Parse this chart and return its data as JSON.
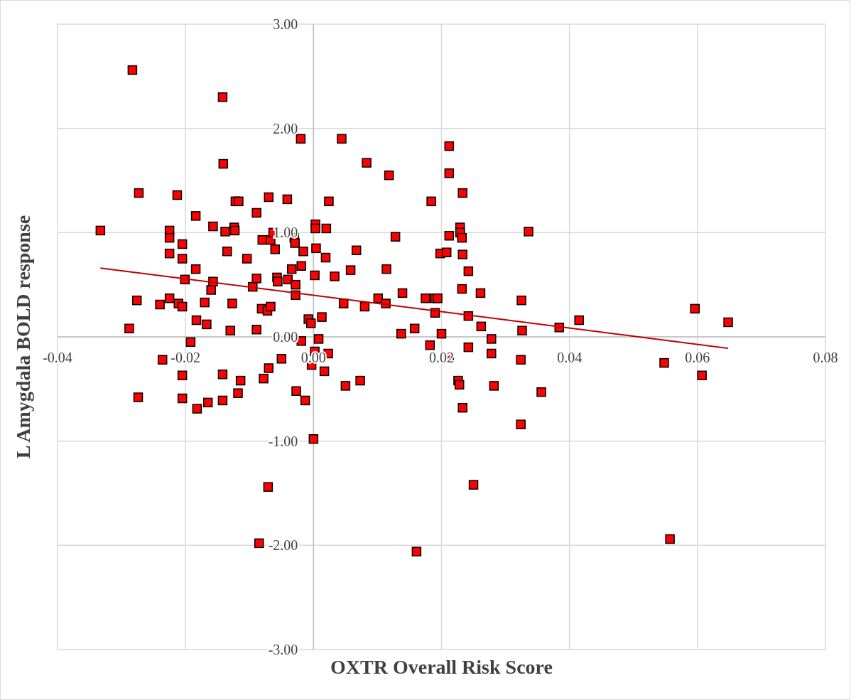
{
  "chart_data": {
    "type": "scatter",
    "xlabel": "OXTR Overall Risk Score",
    "ylabel": "L Amygdala BOLD response",
    "xlim": [
      -0.04,
      0.08
    ],
    "ylim": [
      -3,
      3
    ],
    "xticks": [
      {
        "value": -0.04,
        "label": "-0.04"
      },
      {
        "value": -0.02,
        "label": "-0.02"
      },
      {
        "value": 0,
        "label": "0.00"
      },
      {
        "value": 0.02,
        "label": "0.02"
      },
      {
        "value": 0.04,
        "label": "0.04"
      },
      {
        "value": 0.06,
        "label": "0.06"
      },
      {
        "value": 0.08,
        "label": "0.08"
      }
    ],
    "yticks": [
      {
        "value": -3,
        "label": "-3.00"
      },
      {
        "value": -2,
        "label": "-2.00"
      },
      {
        "value": -1,
        "label": "-1.00"
      },
      {
        "value": 0,
        "label": "0.00"
      },
      {
        "value": 1,
        "label": "1.00"
      },
      {
        "value": 2,
        "label": "2.00"
      },
      {
        "value": 3,
        "label": "3.00"
      }
    ],
    "grid": true,
    "series": [
      {
        "marker": "square",
        "color": "#ff0000",
        "x": [
          -0.0333,
          -0.0283,
          -0.0273,
          -0.0288,
          -0.0276,
          -0.0274,
          -0.024,
          -0.0236,
          -0.0225,
          -0.0225,
          -0.0225,
          -0.0225,
          -0.0213,
          -0.0211,
          -0.0205,
          -0.0205,
          -0.0205,
          -0.0205,
          -0.0205,
          -0.0201,
          -0.0192,
          -0.0184,
          -0.0184,
          -0.0183,
          -0.0182,
          -0.017,
          -0.0167,
          -0.0165,
          -0.016,
          -0.0157,
          -0.0157,
          -0.0142,
          -0.0141,
          -0.0142,
          -0.0142,
          -0.0138,
          -0.0135,
          -0.013,
          -0.0127,
          -0.0124,
          -0.0123,
          -0.0122,
          -0.0117,
          -0.0118,
          -0.0114,
          -0.0104,
          -0.0095,
          -0.0089,
          -0.0089,
          -0.0089,
          -0.0085,
          -0.0081,
          -0.008,
          -0.0078,
          -0.0072,
          -0.0071,
          -0.007,
          -0.007,
          -0.0067,
          -0.0067,
          -0.0063,
          -0.006,
          -0.0057,
          -0.0056,
          -0.005,
          -0.0041,
          -0.004,
          -0.0034,
          -0.003,
          -0.0029,
          -0.0028,
          -0.0028,
          -0.0027,
          -0.002,
          -0.0019,
          -0.0019,
          -0.0016,
          -0.0013,
          -0.0008,
          -0.0004,
          -0.0003,
          0,
          0.0002,
          0.0003,
          0.0003,
          0.0002,
          0.0004,
          0.0008,
          0.0013,
          0.0017,
          0.0019,
          0.002,
          0.0023,
          0.0024,
          0.0033,
          0.0044,
          0.0047,
          0.005,
          0.0058,
          0.0067,
          0.0073,
          0.008,
          0.0083,
          0.0101,
          0.0113,
          0.0114,
          0.0118,
          0.0128,
          0.0137,
          0.0139,
          0.0158,
          0.0161,
          0.0175,
          0.0182,
          0.0184,
          0.019,
          0.019,
          0.0194,
          0.0198,
          0.02,
          0.0208,
          0.0212,
          0.0212,
          0.0212,
          0.0212,
          0.0226,
          0.0228,
          0.0229,
          0.0229,
          0.0232,
          0.0232,
          0.0233,
          0.0233,
          0.0233,
          0.0242,
          0.0242,
          0.0242,
          0.025,
          0.0261,
          0.0262,
          0.0278,
          0.0278,
          0.0282,
          0.0325,
          0.0326,
          0.0324,
          0.0324,
          0.0336,
          0.0356,
          0.0384,
          0.0415,
          0.0548,
          0.0557,
          0.0596,
          0.0607,
          0.0648
        ],
        "values": [
          1.02,
          2.56,
          1.38,
          0.08,
          0.35,
          -0.58,
          0.31,
          -0.22,
          1.02,
          0.95,
          0.8,
          0.37,
          1.36,
          0.32,
          0.89,
          0.75,
          0.29,
          -0.37,
          -0.59,
          0.55,
          -0.05,
          1.16,
          0.65,
          0.16,
          -0.69,
          0.33,
          0.12,
          -0.63,
          0.45,
          1.06,
          0.53,
          2.3,
          1.66,
          -0.36,
          -0.61,
          1.01,
          0.82,
          0.06,
          0.32,
          1.05,
          1.02,
          1.3,
          1.3,
          -0.54,
          -0.42,
          0.75,
          0.48,
          1.19,
          0.56,
          0.07,
          -1.98,
          0.27,
          0.93,
          -0.4,
          0.25,
          -1.44,
          -0.3,
          1.34,
          0.29,
          0.93,
          1,
          0.84,
          0.57,
          0.53,
          -0.21,
          1.32,
          0.55,
          0.65,
          0.95,
          0.9,
          0.5,
          0.4,
          -0.52,
          1.9,
          -0.04,
          0.68,
          0.82,
          -0.61,
          0.17,
          0.13,
          -0.27,
          -0.98,
          -0.14,
          1.08,
          1.04,
          0.59,
          0.85,
          -0.02,
          0.19,
          -0.33,
          0.76,
          1.04,
          -0.16,
          1.3,
          0.58,
          1.9,
          0.32,
          -0.47,
          0.64,
          0.83,
          -0.42,
          0.29,
          1.67,
          0.37,
          0.32,
          0.65,
          1.55,
          0.96,
          0.03,
          0.42,
          0.08,
          -2.06,
          0.37,
          -0.08,
          1.3,
          0.37,
          0.23,
          0.37,
          0.8,
          0.03,
          0.81,
          1.83,
          1.57,
          0.97,
          -0.2,
          -0.42,
          -0.46,
          1.05,
          1,
          0.95,
          0.46,
          0.79,
          1.38,
          -0.68,
          0.63,
          -0.1,
          0.2,
          -1.42,
          0.42,
          0.1,
          -0.02,
          -0.16,
          -0.47,
          0.35,
          0.06,
          -0.22,
          -0.84,
          1.01,
          -0.53,
          0.09,
          0.16,
          -0.25,
          -1.94,
          0.27,
          -0.37,
          0.14
        ]
      },
      {
        "type": "line",
        "color": "#c00000",
        "line_style": "solid",
        "x": [
          -0.0333,
          0.0648
        ],
        "values": [
          0.66,
          -0.11
        ]
      }
    ]
  }
}
